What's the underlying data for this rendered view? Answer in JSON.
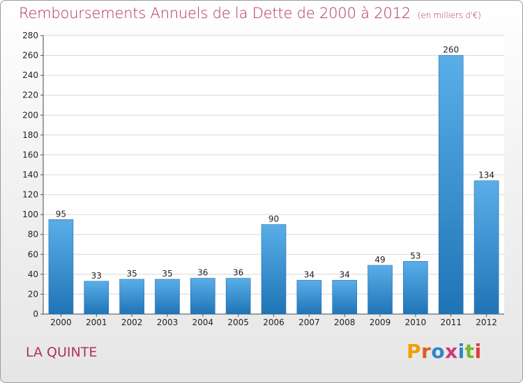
{
  "header": {
    "title": "Remboursements Annuels de la Dette de 2000 à 2012",
    "unit": "(en milliers d'€)"
  },
  "footer": {
    "commune": "LA QUINTE",
    "logo": "Proxiti"
  },
  "colors": {
    "title": "#b0305f",
    "bar_top": "#5aaee8",
    "bar_bottom": "#1f74b6",
    "logo_letters": [
      "#f0a000",
      "#e05a1e",
      "#2f86c9",
      "#d03a7a",
      "#2f86c9",
      "#76b82a",
      "#e03a3a"
    ]
  },
  "chart_data": {
    "type": "bar",
    "categories": [
      "2000",
      "2001",
      "2002",
      "2003",
      "2004",
      "2005",
      "2006",
      "2007",
      "2008",
      "2009",
      "2010",
      "2011",
      "2012"
    ],
    "values": [
      95,
      33,
      35,
      35,
      36,
      36,
      90,
      34,
      34,
      49,
      53,
      260,
      134
    ],
    "ylim": [
      0,
      280
    ],
    "yticks": [
      0,
      20,
      40,
      60,
      80,
      100,
      120,
      140,
      160,
      180,
      200,
      220,
      240,
      260,
      280
    ],
    "grid": true,
    "data_labels": true
  }
}
